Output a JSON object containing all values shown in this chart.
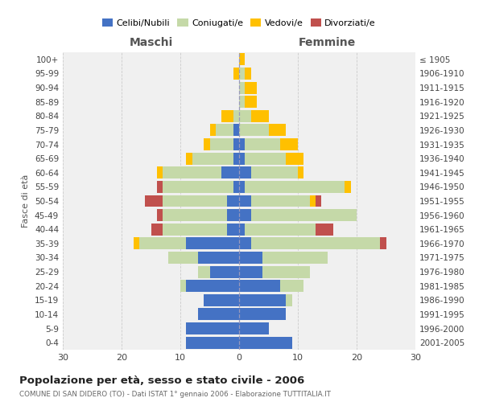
{
  "age_groups": [
    "0-4",
    "5-9",
    "10-14",
    "15-19",
    "20-24",
    "25-29",
    "30-34",
    "35-39",
    "40-44",
    "45-49",
    "50-54",
    "55-59",
    "60-64",
    "65-69",
    "70-74",
    "75-79",
    "80-84",
    "85-89",
    "90-94",
    "95-99",
    "100+"
  ],
  "birth_years": [
    "2001-2005",
    "1996-2000",
    "1991-1995",
    "1986-1990",
    "1981-1985",
    "1976-1980",
    "1971-1975",
    "1966-1970",
    "1961-1965",
    "1956-1960",
    "1951-1955",
    "1946-1950",
    "1941-1945",
    "1936-1940",
    "1931-1935",
    "1926-1930",
    "1921-1925",
    "1916-1920",
    "1911-1915",
    "1906-1910",
    "≤ 1905"
  ],
  "maschi": {
    "celibi": [
      9,
      9,
      7,
      6,
      9,
      5,
      7,
      9,
      2,
      2,
      2,
      1,
      3,
      1,
      1,
      1,
      0,
      0,
      0,
      0,
      0
    ],
    "coniugati": [
      0,
      0,
      0,
      0,
      1,
      2,
      5,
      8,
      11,
      11,
      11,
      12,
      10,
      7,
      4,
      3,
      1,
      0,
      0,
      0,
      0
    ],
    "vedovi": [
      0,
      0,
      0,
      0,
      0,
      0,
      0,
      1,
      0,
      0,
      0,
      0,
      1,
      1,
      1,
      1,
      2,
      0,
      0,
      1,
      0
    ],
    "divorziati": [
      0,
      0,
      0,
      0,
      0,
      0,
      0,
      0,
      2,
      1,
      3,
      1,
      0,
      0,
      0,
      0,
      0,
      0,
      0,
      0,
      0
    ]
  },
  "femmine": {
    "nubili": [
      9,
      5,
      8,
      8,
      7,
      4,
      4,
      2,
      1,
      2,
      2,
      1,
      2,
      1,
      1,
      0,
      0,
      0,
      0,
      0,
      0
    ],
    "coniugate": [
      0,
      0,
      0,
      1,
      4,
      8,
      11,
      22,
      12,
      18,
      10,
      17,
      8,
      7,
      6,
      5,
      2,
      1,
      1,
      1,
      0
    ],
    "vedove": [
      0,
      0,
      0,
      0,
      0,
      0,
      0,
      0,
      0,
      0,
      1,
      1,
      1,
      3,
      3,
      3,
      3,
      2,
      2,
      1,
      1
    ],
    "divorziate": [
      0,
      0,
      0,
      0,
      0,
      0,
      0,
      1,
      3,
      0,
      1,
      0,
      0,
      0,
      0,
      0,
      0,
      0,
      0,
      0,
      0
    ]
  },
  "color_celibi": "#4472c4",
  "color_coniugati": "#c5d9a8",
  "color_vedovi": "#ffc000",
  "color_divorziati": "#c0504d",
  "title": "Popolazione per età, sesso e stato civile - 2006",
  "subtitle": "COMUNE DI SAN DIDERO (TO) - Dati ISTAT 1° gennaio 2006 - Elaborazione TUTTITALIA.IT",
  "xlabel_left": "Maschi",
  "xlabel_right": "Femmine",
  "ylabel": "Fasce di età",
  "xlim": 30,
  "background_color": "#ffffff",
  "plot_bg": "#f0f0f0",
  "grid_color": "#cccccc"
}
